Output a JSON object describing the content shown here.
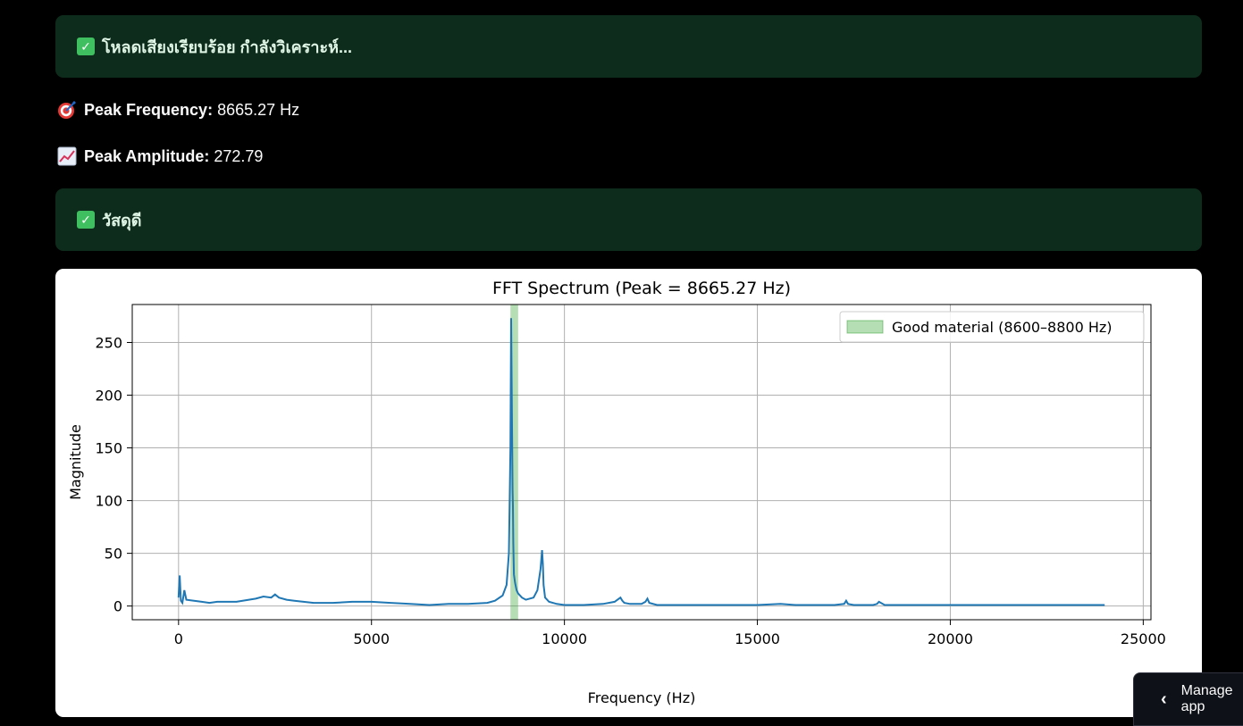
{
  "alerts": {
    "loaded": "โหลดเสียงเรียบร้อย กำลังวิเคราะห์...",
    "result": "วัสดุดี"
  },
  "metrics": {
    "peak_frequency": {
      "label": "Peak Frequency:",
      "value": "8665.27 Hz",
      "icon": "target-icon"
    },
    "peak_amplitude": {
      "label": "Peak Amplitude:",
      "value": "272.79",
      "icon": "chart-increasing-icon"
    }
  },
  "manage_button": {
    "label": "Manage app",
    "icon": "chevron-left-icon"
  },
  "colors": {
    "line": "#1f77b4",
    "band": "#2ca02c",
    "alert_bg": "#0e2c1b"
  },
  "chart_data": {
    "type": "line",
    "title": "FFT Spectrum (Peak = 8665.27 Hz)",
    "xlabel": "Frequency (Hz)",
    "ylabel": "Magnitude",
    "xlim": [
      -1200,
      25200
    ],
    "ylim": [
      -13,
      286
    ],
    "xticks": [
      "0",
      "5000",
      "10000",
      "15000",
      "20000",
      "25000"
    ],
    "xtick_values": [
      0,
      5000,
      10000,
      15000,
      20000,
      25000
    ],
    "yticks": [
      "0",
      "50",
      "100",
      "150",
      "200",
      "250"
    ],
    "ytick_values": [
      0,
      50,
      100,
      150,
      200,
      250
    ],
    "grid": true,
    "legend_position": "top-right",
    "band": {
      "label": "Good material (8600–8800 Hz)",
      "x0": 8600,
      "x1": 8800
    },
    "series": [
      {
        "x": [
          0,
          30,
          60,
          100,
          150,
          200,
          400,
          600,
          800,
          1000,
          1500,
          2000,
          2200,
          2400,
          2500,
          2600,
          2800,
          3000,
          3500,
          4000,
          4500,
          5000,
          5500,
          6000,
          6500,
          7000,
          7500,
          8000,
          8200,
          8400,
          8500,
          8560,
          8600,
          8620,
          8640,
          8655,
          8665,
          8675,
          8690,
          8720,
          8760,
          8800,
          8900,
          9000,
          9200,
          9300,
          9380,
          9420,
          9440,
          9460,
          9500,
          9600,
          9800,
          10000,
          10500,
          11000,
          11300,
          11450,
          11500,
          11550,
          11700,
          12000,
          12100,
          12150,
          12200,
          12400,
          13000,
          14000,
          15000,
          15600,
          16000,
          16500,
          17000,
          17250,
          17300,
          17350,
          17500,
          18000,
          18100,
          18150,
          18300,
          19000,
          20000,
          21000,
          22000,
          23000,
          24000
        ],
        "values": [
          8,
          29,
          5,
          3,
          15,
          6,
          5,
          4,
          3,
          4,
          4,
          7,
          9,
          8,
          11,
          8,
          6,
          5,
          3,
          3,
          4,
          4,
          3,
          2,
          1,
          2,
          2,
          3,
          5,
          10,
          20,
          50,
          150,
          273,
          180,
          110,
          95,
          60,
          30,
          22,
          15,
          12,
          8,
          6,
          8,
          15,
          35,
          53,
          40,
          20,
          8,
          4,
          2,
          1,
          1,
          2,
          4,
          8,
          5,
          3,
          2,
          2,
          4,
          7,
          3,
          1,
          1,
          1,
          1,
          2,
          1,
          1,
          1,
          2,
          5,
          2,
          1,
          1,
          2,
          4,
          1,
          1,
          1,
          1,
          1,
          1,
          1
        ]
      }
    ]
  }
}
